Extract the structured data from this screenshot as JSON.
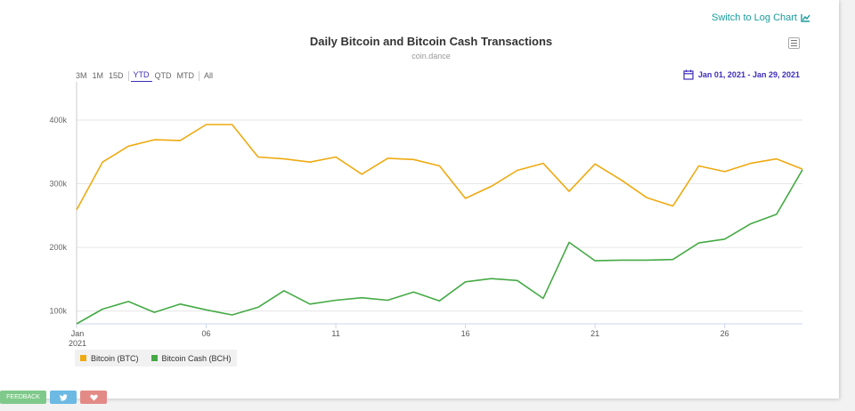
{
  "header": {
    "log_switch_label": "Switch to Log Chart"
  },
  "range_buttons": [
    {
      "label": "3M",
      "active": false
    },
    {
      "label": "1M",
      "active": false
    },
    {
      "label": "15D",
      "active": false
    },
    {
      "label": "YTD",
      "active": true
    },
    {
      "label": "QTD",
      "active": false
    },
    {
      "label": "MTD",
      "active": false
    },
    {
      "label": "All",
      "active": false
    }
  ],
  "date_range_label": "Jan 01, 2021 - Jan 29, 2021",
  "social": {
    "feedback_label": "FEEDBACK",
    "twitter_icon": "twitter-icon",
    "heart_icon": "heart-icon"
  },
  "colors": {
    "btc": "#eeaa11",
    "bch": "#44aa44",
    "accent": "#3d2db8",
    "link": "#1a9c9c"
  },
  "chart_data": {
    "type": "line",
    "title": "Daily Bitcoin and Bitcoin Cash Transactions",
    "subtitle": "coin.dance",
    "xlabel": "",
    "ylabel": "",
    "x_tick_labels": [
      "Jan\n2021",
      "06",
      "11",
      "16",
      "21",
      "26"
    ],
    "x_tick_days": [
      1,
      6,
      11,
      16,
      21,
      26
    ],
    "y_tick_labels": [
      "100k",
      "200k",
      "300k",
      "400k"
    ],
    "y_tick_values": [
      100000,
      200000,
      300000,
      400000
    ],
    "ylim": [
      80000,
      460000
    ],
    "grid": true,
    "legend_position": "bottom-left",
    "x": [
      1,
      2,
      3,
      4,
      5,
      6,
      7,
      8,
      9,
      10,
      11,
      12,
      13,
      14,
      15,
      16,
      17,
      18,
      19,
      20,
      21,
      22,
      23,
      24,
      25,
      26,
      27,
      28,
      29
    ],
    "series": [
      {
        "name": "Bitcoin (BTC)",
        "color": "#eeaa11",
        "values": [
          259000,
          334000,
          359000,
          369000,
          368000,
          393000,
          393000,
          342000,
          339000,
          334000,
          342000,
          315000,
          340000,
          338000,
          328000,
          277000,
          296000,
          321000,
          332000,
          288000,
          331000,
          306000,
          278000,
          265000,
          328000,
          319000,
          332000,
          339000,
          323000
        ]
      },
      {
        "name": "Bitcoin Cash (BCH)",
        "color": "#44aa44",
        "values": [
          80000,
          103000,
          115000,
          98000,
          111000,
          102000,
          94000,
          106000,
          132000,
          111000,
          117000,
          121000,
          117000,
          130000,
          116000,
          146000,
          151000,
          148000,
          120000,
          208000,
          179000,
          180000,
          180000,
          181000,
          207000,
          213000,
          237000,
          252000,
          322000
        ]
      }
    ]
  }
}
